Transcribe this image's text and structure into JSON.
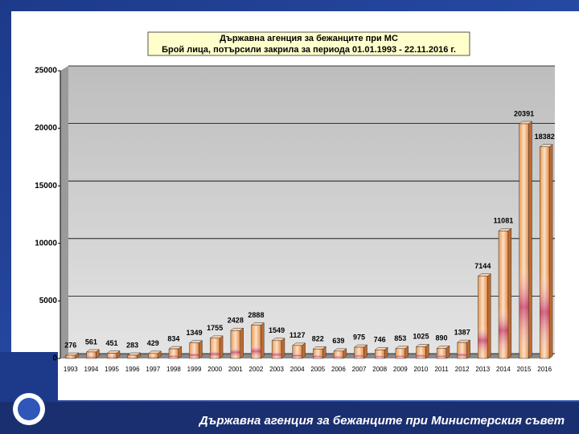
{
  "chart_data": {
    "type": "bar",
    "title": "Държавна агенция за бежанците при МС",
    "subtitle": "Брой лица, потърсили закрила за периода 01.01.1993 - 22.11.2016 г.",
    "categories": [
      "1993",
      "1994",
      "1995",
      "1996",
      "1997",
      "1998",
      "1999",
      "2000",
      "2001",
      "2002",
      "2003",
      "2004",
      "2005",
      "2006",
      "2007",
      "2008",
      "2009",
      "2010",
      "2011",
      "2012",
      "2013",
      "2014",
      "2015",
      "2016"
    ],
    "values": [
      276,
      561,
      451,
      283,
      429,
      834,
      1349,
      1755,
      2428,
      2888,
      1549,
      1127,
      822,
      639,
      975,
      746,
      853,
      1025,
      890,
      1387,
      7144,
      11081,
      20391,
      18382
    ],
    "color": "#f4b183",
    "ylim": [
      0,
      25000
    ],
    "yticks": [
      0,
      5000,
      10000,
      15000,
      20000,
      25000
    ],
    "grid": true
  },
  "footer": "Държавна агенция за бежанците при Министерския съвет"
}
